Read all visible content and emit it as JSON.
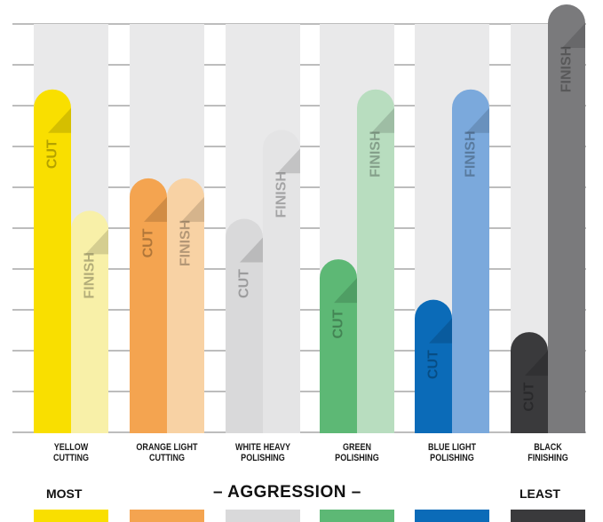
{
  "chart_data": {
    "type": "bar",
    "categories": [
      "YELLOW CUTTING",
      "ORANGE LIGHT CUTTING",
      "WHITE HEAVY POLISHING",
      "GREEN POLISHING",
      "BLUE LIGHT POLISHING",
      "BLACK FINISHING"
    ],
    "category_lines": [
      [
        "YELLOW",
        "CUTTING"
      ],
      [
        "ORANGE LIGHT",
        "CUTTING"
      ],
      [
        "WHITE HEAVY",
        "POLISHING"
      ],
      [
        "GREEN",
        "POLISHING"
      ],
      [
        "BLUE LIGHT",
        "POLISHING"
      ],
      [
        "BLACK",
        "FINISHING"
      ]
    ],
    "series": [
      {
        "name": "CUT",
        "values": [
          8.5,
          6.3,
          5.3,
          4.3,
          3.3,
          2.5
        ]
      },
      {
        "name": "FINISH",
        "values": [
          5.5,
          6.3,
          7.5,
          8.5,
          8.5,
          10.6
        ]
      }
    ],
    "ylim": [
      0,
      10.6
    ],
    "grid": true,
    "colors": {
      "yellow_cut": "#f9df00",
      "yellow_finish": "#f8f0a8",
      "orange_cut": "#f4a450",
      "orange_finish": "#f8d2a4",
      "white_cut": "#d9d9da",
      "white_finish": "#e4e4e5",
      "green_cut": "#5db875",
      "green_finish": "#b8ddbf",
      "blue_cut": "#0b6bb8",
      "blue_finish": "#7ba9dc",
      "black_cut": "#3a3a3c",
      "black_finish": "#7a7a7c",
      "track": "#e9e9ea",
      "grid": "#bdbdbd"
    },
    "legend": {
      "left": "MOST",
      "center": "– AGGRESSION –",
      "right": "LEAST"
    }
  }
}
